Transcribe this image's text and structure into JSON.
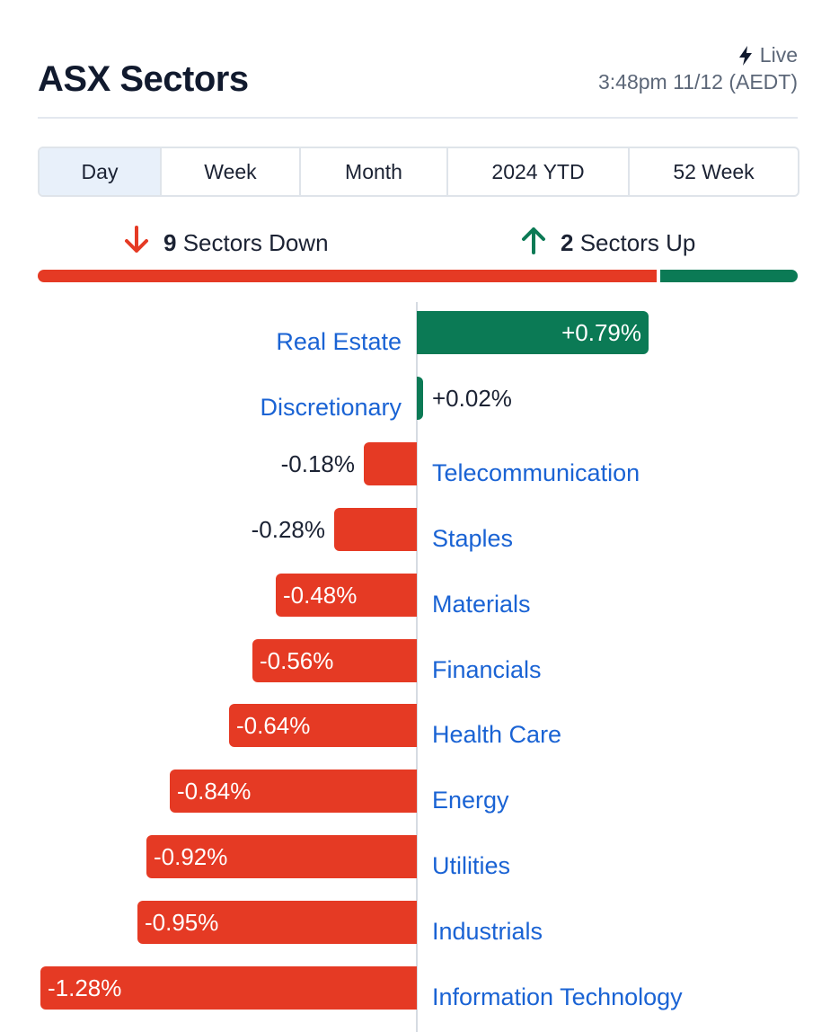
{
  "header": {
    "title": "ASX Sectors",
    "live_label": "Live",
    "live_icon": "lightning-bolt-icon",
    "timestamp": "3:48pm 11/12 (AEDT)"
  },
  "tabs": [
    {
      "label": "Day",
      "active": true
    },
    {
      "label": "Week",
      "active": false
    },
    {
      "label": "Month",
      "active": false
    },
    {
      "label": "2024 YTD",
      "active": false
    },
    {
      "label": "52 Week",
      "active": false
    }
  ],
  "summary": {
    "down_count": "9",
    "down_label": "Sectors Down",
    "down_icon": "arrow-down-icon",
    "up_count": "2",
    "up_label": "Sectors Up",
    "up_icon": "arrow-up-icon",
    "down_fraction": 0.818,
    "up_fraction": 0.182
  },
  "colors": {
    "negative": "#e53a24",
    "positive": "#0b7a55",
    "link": "#1a63d4",
    "text": "#1b2233"
  },
  "chart_data": {
    "type": "bar",
    "orientation": "horizontal",
    "unit": "%",
    "xlim": [
      -1.28,
      0.79
    ],
    "grid": false,
    "categories": [
      "Real Estate",
      "Discretionary",
      "Telecommunication",
      "Staples",
      "Materials",
      "Financials",
      "Health Care",
      "Energy",
      "Utilities",
      "Industrials",
      "Information Technology"
    ],
    "values": [
      0.79,
      0.02,
      -0.18,
      -0.28,
      -0.48,
      -0.56,
      -0.64,
      -0.84,
      -0.92,
      -0.95,
      -1.28
    ],
    "labels": [
      "+0.79%",
      "+0.02%",
      "-0.18%",
      "-0.28%",
      "-0.48%",
      "-0.56%",
      "-0.64%",
      "-0.84%",
      "-0.92%",
      "-0.95%",
      "-1.28%"
    ]
  }
}
